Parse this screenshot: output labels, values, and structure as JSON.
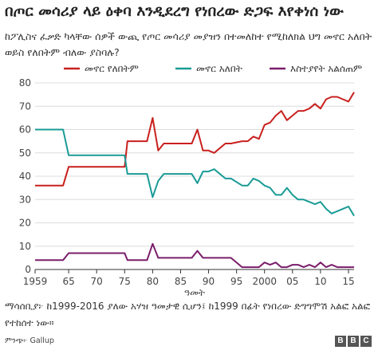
{
  "title": "በጦር መሳሪያ ላይ ዕቀባ እንዲደረግ የነበረው ድጋፍ እየቀነሰ ነው",
  "subtitle": "ከፖሊስና ፈቃድ ካላቸው ሰዎች ውጪ የጦር መሳሪያ መያዝን በተመለከተ የሚከለክል ህግ መኖር አለበት ወይስ የለበትም ብለው ያስባሉ?",
  "note": "ማሳሰቢያ፦ ከ1999-2016 ያለው አሃዝ ዓመታዊ ሲሆን፤ ከ1999 በፊት የነበረው ድግግሞሽ አልፎ አልፎ የተከሰተ ነው።",
  "source": "ምንጭ፦ Gallup",
  "logo_letters": [
    "B",
    "B",
    "C"
  ],
  "chart_data": {
    "type": "line",
    "xlabel": "ዓመት",
    "ylabel": "",
    "xlim": [
      1959,
      2016
    ],
    "ylim": [
      0,
      80
    ],
    "xticks": [
      1959,
      1965,
      1970,
      1975,
      1980,
      1985,
      1990,
      1995,
      2000,
      2005,
      2010,
      2015
    ],
    "xtick_labels": [
      "1959",
      "65",
      "70",
      "75",
      "80",
      "85",
      "90",
      "95",
      "2000",
      "05",
      "10",
      "15"
    ],
    "yticks": [
      0,
      10,
      20,
      30,
      40,
      50,
      60,
      70,
      80
    ],
    "grid": true,
    "legend_position": "top",
    "series": [
      {
        "name": "መኖር የለበትም",
        "color": "#c8201e",
        "points": [
          [
            1959,
            36
          ],
          [
            1964,
            36
          ],
          [
            1965,
            44
          ],
          [
            1975,
            44
          ],
          [
            1975.5,
            55
          ],
          [
            1978,
            55
          ],
          [
            1979,
            55
          ],
          [
            1980,
            65
          ],
          [
            1981,
            51
          ],
          [
            1982,
            54
          ],
          [
            1986,
            54
          ],
          [
            1987,
            54
          ],
          [
            1988,
            60
          ],
          [
            1989,
            51
          ],
          [
            1990,
            51
          ],
          [
            1991,
            50
          ],
          [
            1993,
            54
          ],
          [
            1994,
            54
          ],
          [
            1996,
            55
          ],
          [
            1997,
            55
          ],
          [
            1998,
            57
          ],
          [
            1999,
            56
          ],
          [
            2000,
            62
          ],
          [
            2001,
            63
          ],
          [
            2002,
            66
          ],
          [
            2003,
            68
          ],
          [
            2004,
            64
          ],
          [
            2005,
            66
          ],
          [
            2006,
            68
          ],
          [
            2007,
            68
          ],
          [
            2008,
            69
          ],
          [
            2009,
            71
          ],
          [
            2010,
            69
          ],
          [
            2011,
            73
          ],
          [
            2012,
            74
          ],
          [
            2013,
            74
          ],
          [
            2014,
            73
          ],
          [
            2015,
            72
          ],
          [
            2016,
            76
          ]
        ]
      },
      {
        "name": "መኖር አለበት",
        "color": "#1a9b96",
        "points": [
          [
            1959,
            60
          ],
          [
            1964,
            60
          ],
          [
            1965,
            49
          ],
          [
            1975,
            49
          ],
          [
            1975.5,
            41
          ],
          [
            1978,
            41
          ],
          [
            1979,
            41
          ],
          [
            1980,
            31
          ],
          [
            1981,
            38
          ],
          [
            1982,
            41
          ],
          [
            1986,
            41
          ],
          [
            1987,
            41
          ],
          [
            1988,
            37
          ],
          [
            1989,
            42
          ],
          [
            1990,
            42
          ],
          [
            1991,
            43
          ],
          [
            1993,
            39
          ],
          [
            1994,
            39
          ],
          [
            1996,
            36
          ],
          [
            1997,
            36
          ],
          [
            1998,
            39
          ],
          [
            1999,
            38
          ],
          [
            2000,
            36
          ],
          [
            2001,
            35
          ],
          [
            2002,
            32
          ],
          [
            2003,
            32
          ],
          [
            2004,
            35
          ],
          [
            2005,
            32
          ],
          [
            2006,
            30
          ],
          [
            2007,
            30
          ],
          [
            2008,
            29
          ],
          [
            2009,
            28
          ],
          [
            2010,
            29
          ],
          [
            2011,
            26
          ],
          [
            2012,
            24
          ],
          [
            2013,
            25
          ],
          [
            2014,
            26
          ],
          [
            2015,
            27
          ],
          [
            2016,
            23
          ]
        ]
      },
      {
        "name": "እስተያየት አልሰጠም",
        "color": "#7a1d6b",
        "points": [
          [
            1959,
            4
          ],
          [
            1964,
            4
          ],
          [
            1965,
            7
          ],
          [
            1975,
            7
          ],
          [
            1975.5,
            4
          ],
          [
            1978,
            4
          ],
          [
            1979,
            4
          ],
          [
            1980,
            11
          ],
          [
            1981,
            5
          ],
          [
            1982,
            5
          ],
          [
            1986,
            5
          ],
          [
            1987,
            5
          ],
          [
            1988,
            8
          ],
          [
            1989,
            5
          ],
          [
            1990,
            5
          ],
          [
            1991,
            5
          ],
          [
            1993,
            5
          ],
          [
            1994,
            5
          ],
          [
            1996,
            1
          ],
          [
            1997,
            1
          ],
          [
            1998,
            1
          ],
          [
            1999,
            1
          ],
          [
            2000,
            3
          ],
          [
            2001,
            2
          ],
          [
            2002,
            3
          ],
          [
            2003,
            1
          ],
          [
            2004,
            1
          ],
          [
            2005,
            2
          ],
          [
            2006,
            2
          ],
          [
            2007,
            1
          ],
          [
            2008,
            2
          ],
          [
            2009,
            1
          ],
          [
            2010,
            3
          ],
          [
            2011,
            1
          ],
          [
            2012,
            2
          ],
          [
            2013,
            1
          ],
          [
            2014,
            1
          ],
          [
            2015,
            1
          ],
          [
            2016,
            1
          ]
        ]
      }
    ]
  }
}
